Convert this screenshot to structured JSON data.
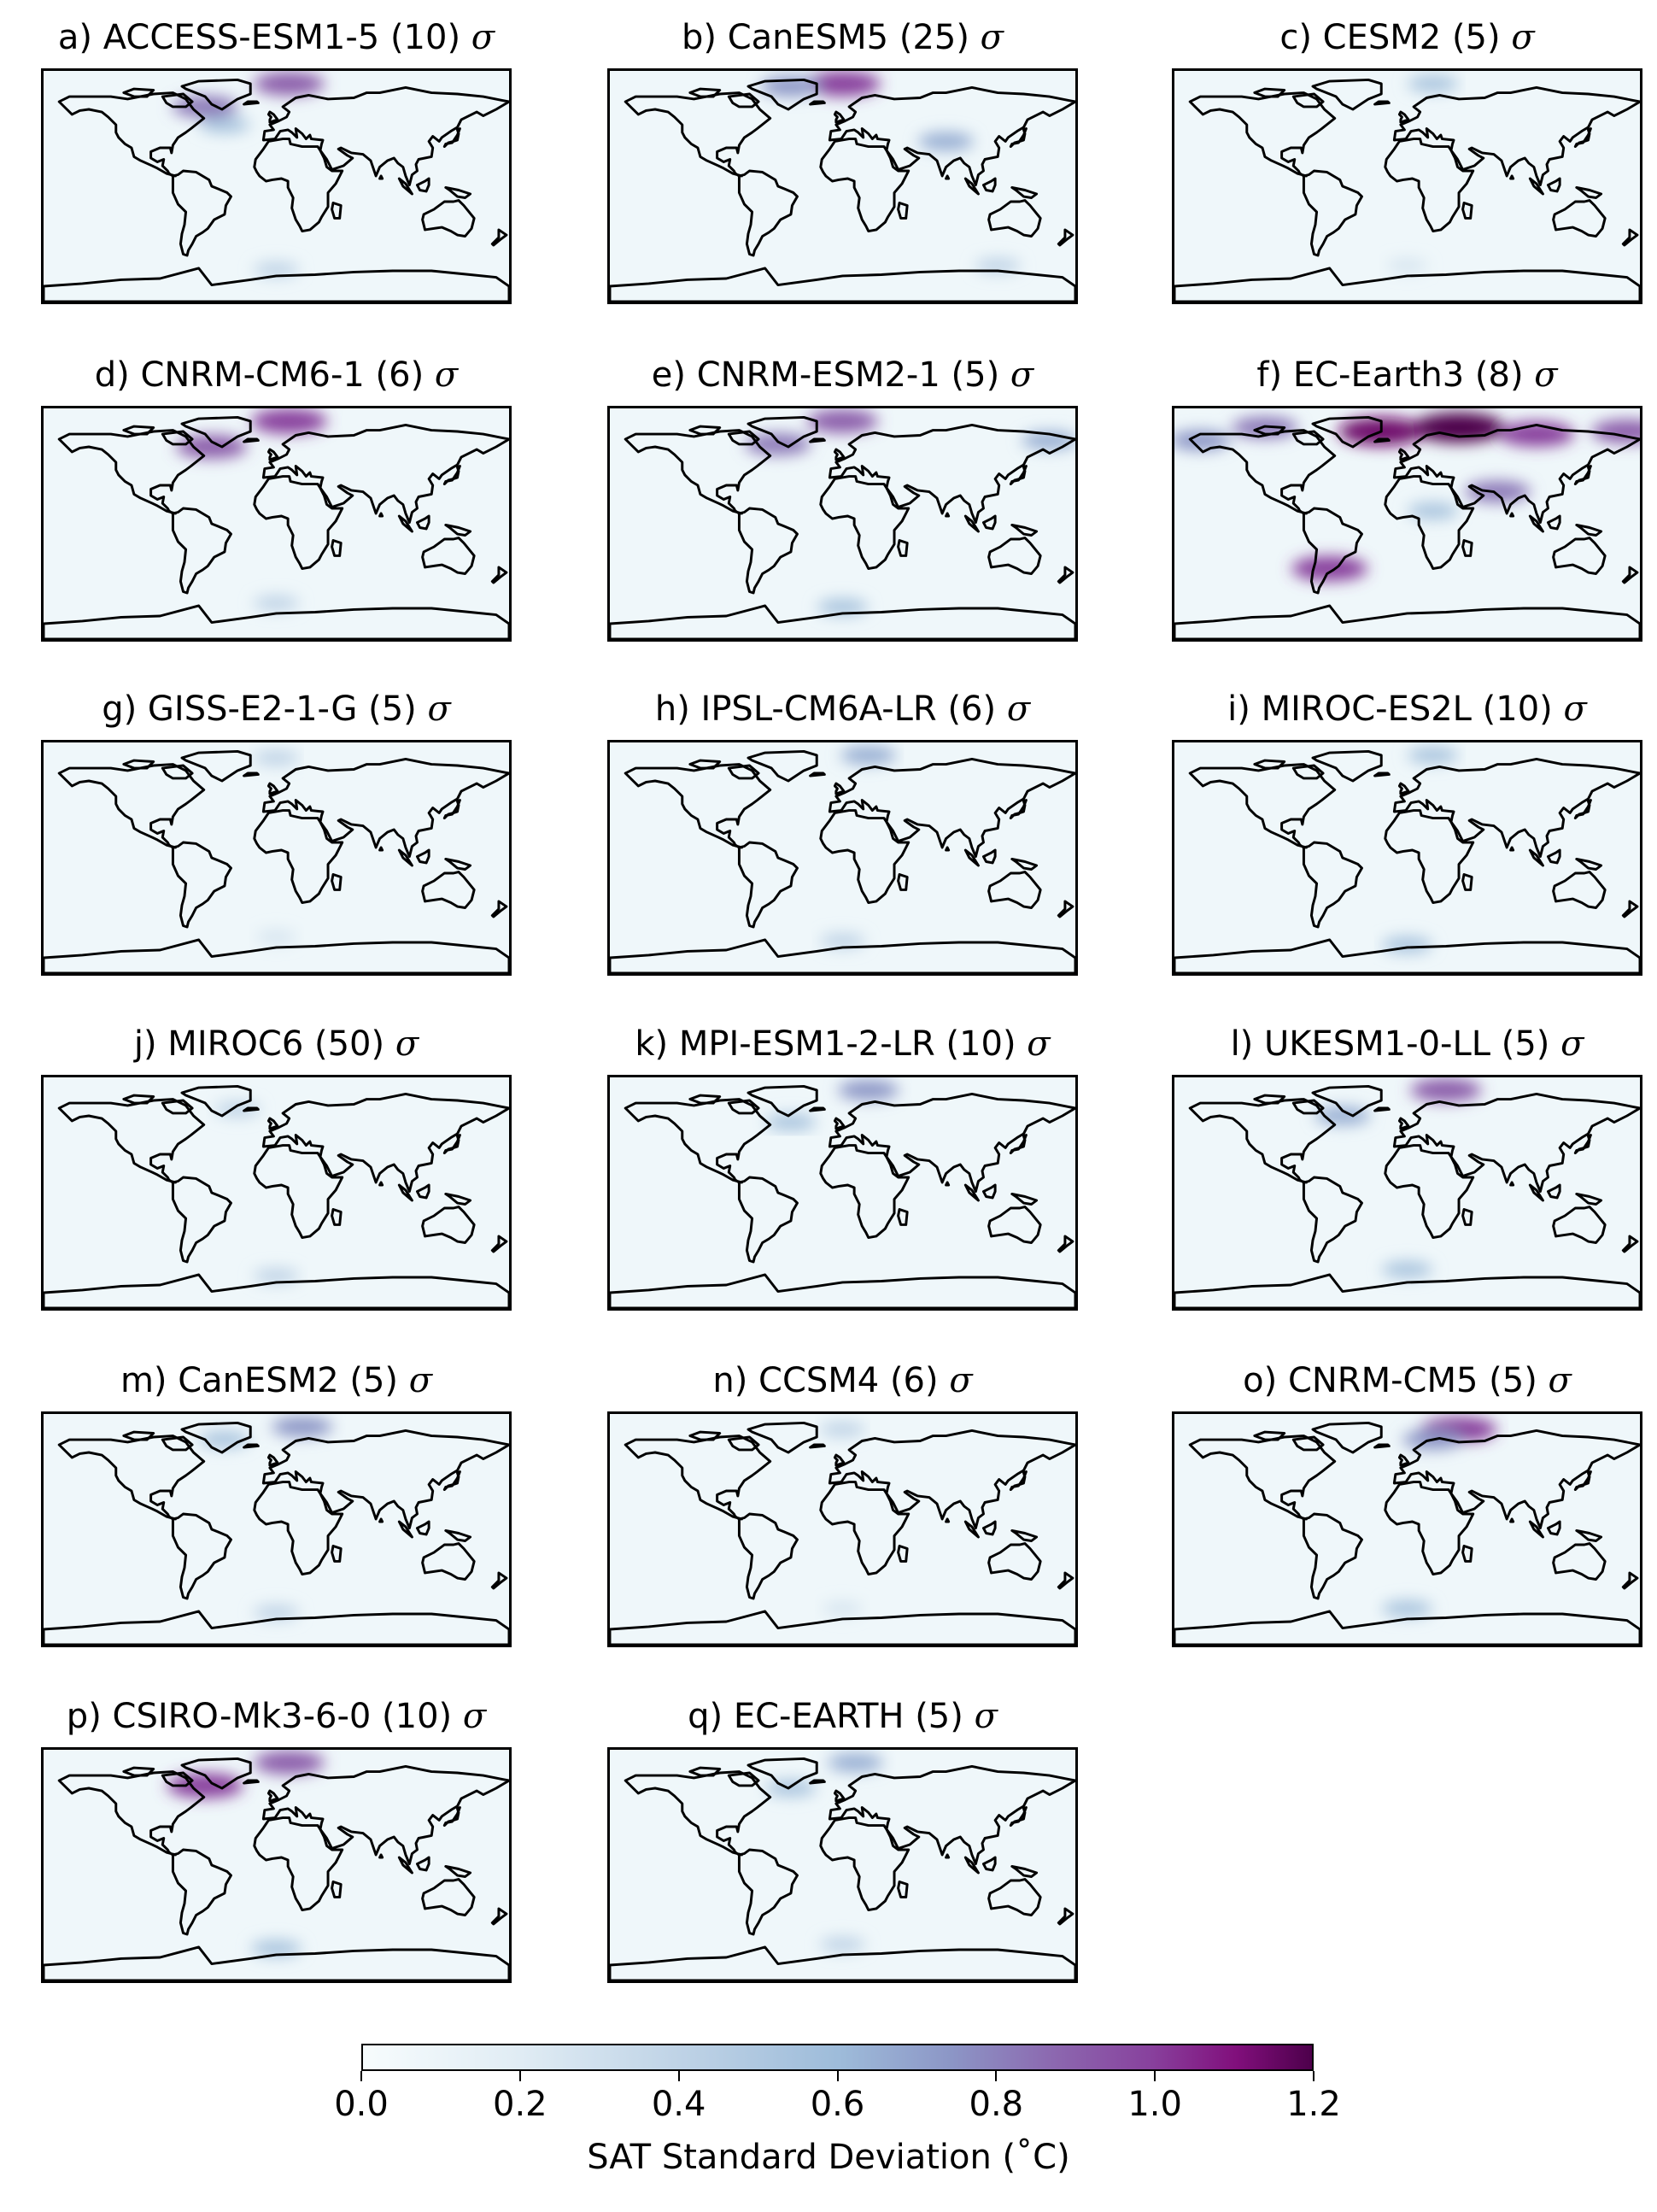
{
  "panels": [
    {
      "title": "a) ACCESS-ESM1-5 (10)",
      "hotspots": [
        {
          "lon": -55,
          "lat": 62,
          "v": 0.7
        },
        {
          "lon": 10,
          "lat": 80,
          "v": 0.8
        },
        {
          "lon": -40,
          "lat": 48,
          "v": 0.4
        },
        {
          "lon": 0,
          "lat": -65,
          "v": 0.3
        }
      ]
    },
    {
      "title": "b) CanESM5 (25)",
      "hotspots": [
        {
          "lon": 0,
          "lat": 80,
          "v": 0.9
        },
        {
          "lon": -40,
          "lat": 78,
          "v": 0.6
        },
        {
          "lon": 80,
          "lat": 35,
          "v": 0.5
        },
        {
          "lon": 120,
          "lat": -62,
          "v": 0.3
        }
      ]
    },
    {
      "title": "c) CESM2 (5)",
      "hotspots": [
        {
          "lon": 20,
          "lat": 80,
          "v": 0.4
        },
        {
          "lon": 0,
          "lat": -62,
          "v": 0.2
        }
      ]
    },
    {
      "title": "d) CNRM-CM6-1 (6)",
      "hotspots": [
        {
          "lon": -50,
          "lat": 60,
          "v": 0.8
        },
        {
          "lon": 10,
          "lat": 80,
          "v": 0.9
        },
        {
          "lon": 0,
          "lat": -62,
          "v": 0.3
        }
      ]
    },
    {
      "title": "e) CNRM-ESM2-1 (5)",
      "hotspots": [
        {
          "lon": -50,
          "lat": 62,
          "v": 0.7
        },
        {
          "lon": 0,
          "lat": 80,
          "v": 0.8
        },
        {
          "lon": 160,
          "lat": 65,
          "v": 0.5
        },
        {
          "lon": 0,
          "lat": -65,
          "v": 0.4
        }
      ]
    },
    {
      "title": "f) EC-Earth3 (8)",
      "hotspots": [
        {
          "lon": -20,
          "lat": 72,
          "v": 1.1
        },
        {
          "lon": 40,
          "lat": 75,
          "v": 1.2
        },
        {
          "lon": 100,
          "lat": 70,
          "v": 0.9
        },
        {
          "lon": 170,
          "lat": 72,
          "v": 0.8
        },
        {
          "lon": -110,
          "lat": 75,
          "v": 0.7
        },
        {
          "lon": -60,
          "lat": -35,
          "v": 0.9
        },
        {
          "lon": 70,
          "lat": 25,
          "v": 0.7
        },
        {
          "lon": 20,
          "lat": 10,
          "v": 0.4
        },
        {
          "lon": -160,
          "lat": 65,
          "v": 0.6
        }
      ]
    },
    {
      "title": "g) GISS-E2-1-G (5)",
      "hotspots": [
        {
          "lon": 0,
          "lat": 78,
          "v": 0.3
        },
        {
          "lon": 0,
          "lat": -62,
          "v": 0.2
        }
      ]
    },
    {
      "title": "h) IPSL-CM6A-LR (6)",
      "hotspots": [
        {
          "lon": 20,
          "lat": 80,
          "v": 0.5
        },
        {
          "lon": 0,
          "lat": -65,
          "v": 0.3
        }
      ]
    },
    {
      "title": "i) MIROC-ES2L (10)",
      "hotspots": [
        {
          "lon": 20,
          "lat": 80,
          "v": 0.4
        },
        {
          "lon": 0,
          "lat": -68,
          "v": 0.4
        }
      ]
    },
    {
      "title": "j) MIROC6 (50)",
      "hotspots": [
        {
          "lon": -30,
          "lat": 65,
          "v": 0.3
        },
        {
          "lon": 0,
          "lat": -65,
          "v": 0.3
        }
      ]
    },
    {
      "title": "k) MPI-ESM1-2-LR (10)",
      "hotspots": [
        {
          "lon": 20,
          "lat": 80,
          "v": 0.6
        },
        {
          "lon": -40,
          "lat": 55,
          "v": 0.4
        }
      ]
    },
    {
      "title": "l) UKESM1-0-LL (5)",
      "hotspots": [
        {
          "lon": 30,
          "lat": 80,
          "v": 0.8
        },
        {
          "lon": -50,
          "lat": 60,
          "v": 0.5
        },
        {
          "lon": 0,
          "lat": -60,
          "v": 0.4
        }
      ]
    },
    {
      "title": "m) CanESM2 (5)",
      "hotspots": [
        {
          "lon": 20,
          "lat": 80,
          "v": 0.6
        },
        {
          "lon": -40,
          "lat": 70,
          "v": 0.4
        },
        {
          "lon": 0,
          "lat": -65,
          "v": 0.3
        }
      ]
    },
    {
      "title": "n) CCSM4 (6)",
      "hotspots": [
        {
          "lon": 0,
          "lat": 78,
          "v": 0.3
        },
        {
          "lon": 0,
          "lat": -62,
          "v": 0.2
        }
      ]
    },
    {
      "title": "o) CNRM-CM5 (5)",
      "hotspots": [
        {
          "lon": 40,
          "lat": 78,
          "v": 0.9
        },
        {
          "lon": 20,
          "lat": 70,
          "v": 0.6
        },
        {
          "lon": 0,
          "lat": -62,
          "v": 0.4
        }
      ]
    },
    {
      "title": "p) CSIRO-Mk3-6-0 (10)",
      "hotspots": [
        {
          "lon": -55,
          "lat": 62,
          "v": 0.9
        },
        {
          "lon": 10,
          "lat": 80,
          "v": 0.8
        },
        {
          "lon": 0,
          "lat": -65,
          "v": 0.4
        }
      ]
    },
    {
      "title": "q) EC-EARTH (5)",
      "hotspots": [
        {
          "lon": 10,
          "lat": 80,
          "v": 0.5
        },
        {
          "lon": -40,
          "lat": 60,
          "v": 0.4
        },
        {
          "lon": 0,
          "lat": -62,
          "v": 0.3
        }
      ]
    }
  ],
  "sigma_symbol": "σ",
  "colorbar": {
    "label": "SAT Standard Deviation (˚C)",
    "min": 0.0,
    "max": 1.2,
    "ticks": [
      "0.0",
      "0.2",
      "0.4",
      "0.6",
      "0.8",
      "1.0",
      "1.2"
    ],
    "colormap": [
      "#f7fcfd",
      "#e0ecf4",
      "#bfd3e6",
      "#9ebcda",
      "#8c96c6",
      "#8c6bb1",
      "#88419d",
      "#810f7c",
      "#4d004b"
    ]
  }
}
